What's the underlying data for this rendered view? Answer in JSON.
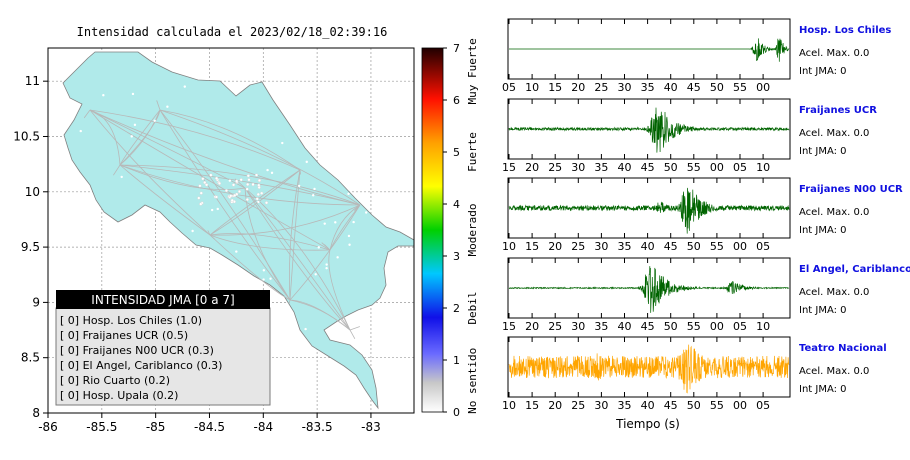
{
  "chart_data": [
    {
      "type": "map",
      "title": "Intensidad calculada el 2023/02/18_02:39:16",
      "x_ticks": [
        "-86",
        "-85.5",
        "-85",
        "-84.5",
        "-84",
        "-83.5",
        "-83"
      ],
      "y_ticks": [
        "11",
        "10.5",
        "10",
        "9.5",
        "9",
        "8.5",
        "8"
      ],
      "xlim": [
        -86,
        -82.6
      ],
      "ylim": [
        8,
        11.3
      ],
      "grid": true,
      "colorbar": {
        "ticks": [
          "7",
          "6",
          "5",
          "4",
          "3",
          "2",
          "1",
          "0"
        ],
        "labels": [
          "Muy Fuerte",
          "Fuerte",
          "Moderado",
          "Debil",
          "No sentido"
        ],
        "range": [
          0,
          7
        ]
      },
      "legend": {
        "title": "INTENSIDAD JMA [0 a 7]",
        "placement": "bottom-left",
        "entries": [
          {
            "text": "[ 0]  Hosp. Los Chiles (1.0)"
          },
          {
            "text": "[ 0]  Fraijanes UCR (0.5)"
          },
          {
            "text": "[ 0]  Fraijanes N00 UCR (0.3)"
          },
          {
            "text": "[ 0]  El Angel, Cariblanco (0.3)"
          },
          {
            "text": "[ 0]  Rio Cuarto (0.2)"
          },
          {
            "text": "[ 0]  Hosp. Upala (0.2)"
          }
        ]
      }
    },
    {
      "type": "line",
      "xlabel": "Tiempo (s)",
      "series": [
        {
          "name": "Hosp. Los Chiles",
          "acel": "Acel. Max. 0.0",
          "int": "Int JMA: 0",
          "color": "#006400",
          "ticks": [
            "05",
            "10",
            "15",
            "20",
            "25",
            "30",
            "35",
            "40",
            "45",
            "50",
            "55",
            "00"
          ],
          "bursts": [
            {
              "t": 0.885,
              "w": 0.02,
              "a": 0.6
            },
            {
              "t": 0.965,
              "w": 0.015,
              "a": 0.55
            }
          ],
          "noise": 0.0
        },
        {
          "name": "Fraijanes UCR",
          "acel": "Acel. Max. 0.0",
          "int": "Int JMA: 0",
          "color": "#006400",
          "ticks": [
            "15",
            "20",
            "25",
            "30",
            "35",
            "40",
            "45",
            "50",
            "55",
            "00",
            "05",
            "10"
          ],
          "bursts": [
            {
              "t": 0.535,
              "w": 0.05,
              "a": 0.95
            }
          ],
          "noise": 0.05
        },
        {
          "name": "Fraijanes N00 UCR",
          "acel": "Acel. Max. 0.0",
          "int": "Int JMA: 0",
          "color": "#006400",
          "ticks": [
            "10",
            "15",
            "20",
            "25",
            "30",
            "35",
            "40",
            "45",
            "50",
            "55",
            "00",
            "05"
          ],
          "bursts": [
            {
              "t": 0.64,
              "w": 0.045,
              "a": 0.95
            },
            {
              "t": 0.54,
              "w": 0.04,
              "a": 0.25
            }
          ],
          "noise": 0.09
        },
        {
          "name": "El Angel, Cariblanco",
          "acel": "Acel. Max. 0.0",
          "int": "Int JMA: 0",
          "color": "#006400",
          "ticks": [
            "15",
            "20",
            "25",
            "30",
            "35",
            "40",
            "45",
            "50",
            "55",
            "00",
            "05",
            "10"
          ],
          "bursts": [
            {
              "t": 0.51,
              "w": 0.05,
              "a": 0.95
            },
            {
              "t": 0.8,
              "w": 0.04,
              "a": 0.25
            }
          ],
          "noise": 0.02
        },
        {
          "name": "Teatro Nacional",
          "acel": "Acel. Max. 0.0",
          "int": "Int JMA: 0",
          "color": "#ffa500",
          "ticks": [
            "10",
            "15",
            "20",
            "25",
            "30",
            "35",
            "40",
            "45",
            "50",
            "55",
            "00",
            "05"
          ],
          "bursts": [
            {
              "t": 0.32,
              "w": 0.06,
              "a": 0.5
            },
            {
              "t": 0.64,
              "w": 0.07,
              "a": 0.95
            }
          ],
          "noise": 0.4
        }
      ]
    }
  ]
}
